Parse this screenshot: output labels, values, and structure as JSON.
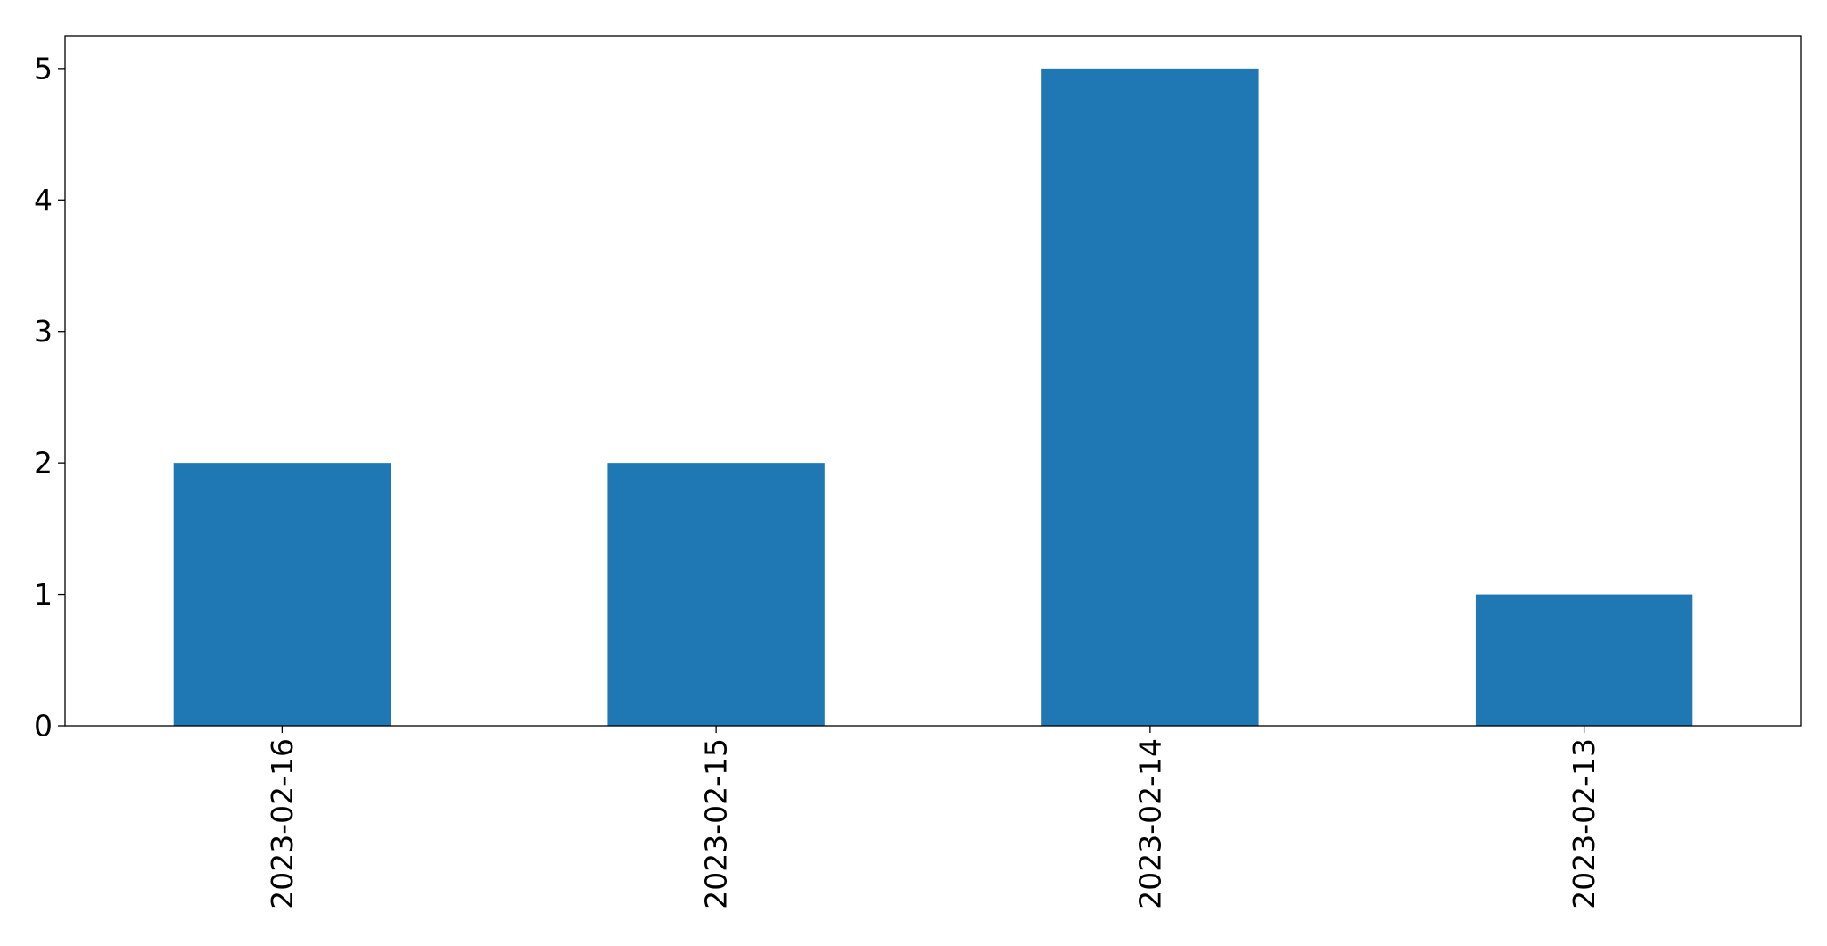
{
  "chart_data": {
    "type": "bar",
    "title": "",
    "xlabel": "",
    "ylabel": "",
    "categories": [
      "2023-02-16",
      "2023-02-15",
      "2023-02-14",
      "2023-02-13"
    ],
    "values": [
      2,
      2,
      5,
      1
    ],
    "ylim": [
      0,
      5.25
    ],
    "yticks": [
      0,
      1,
      2,
      3,
      4,
      5
    ],
    "grid": false,
    "legend": "none",
    "bar_color": "#1f77b4",
    "xtick_rotation": "vertical"
  }
}
